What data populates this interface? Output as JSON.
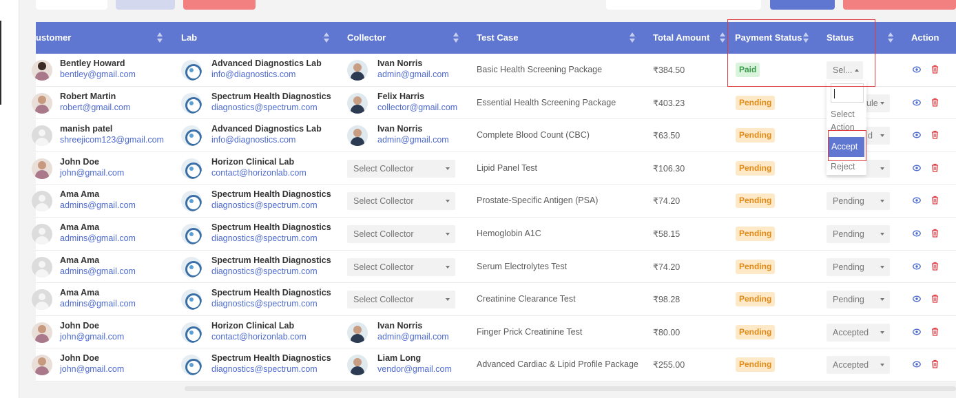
{
  "colors": {
    "header_bg": "#5f77d0",
    "link": "#4e6bd0",
    "paid_bg": "#d9f3dd",
    "paid_fg": "#3a9b49",
    "pending_bg": "#fde9c8",
    "pending_fg": "#e08a17",
    "highlight": "#e0393e"
  },
  "columns": [
    "ustomer",
    "Lab",
    "Collector",
    "Test Case",
    "Total Amount",
    "Payment Status",
    "Status",
    "Action"
  ],
  "rows": [
    {
      "customer": {
        "name": "Bentley Howard",
        "email": "bentley@gmail.com",
        "avatar": "person-photo-icon"
      },
      "lab": {
        "name": "Advanced Diagnostics Lab",
        "email": "info@diagnostics.com"
      },
      "collector": {
        "name": "Ivan Norris",
        "email": "admin@gmail.com"
      },
      "test_case": "Basic Health Screening Package",
      "amount": "₹384.50",
      "payment_status": "Paid",
      "status": "Sel..."
    },
    {
      "customer": {
        "name": "Robert Martin",
        "email": "robert@gmail.com",
        "avatar": "person-photo-icon"
      },
      "lab": {
        "name": "Spectrum Health Diagnostics",
        "email": "diagnostics@spectrum.com"
      },
      "collector": {
        "name": "Felix Harris",
        "email": "collector@gmail.com"
      },
      "test_case": "Essential Health Screening Package",
      "amount": "₹403.23",
      "payment_status": "Pending",
      "status": "ule"
    },
    {
      "customer": {
        "name": "manish patel",
        "email": "shreejicom123@gmail.com",
        "avatar": "default-avatar-icon"
      },
      "lab": {
        "name": "Advanced Diagnostics Lab",
        "email": "info@diagnostics.com"
      },
      "collector": {
        "name": "Ivan Norris",
        "email": "admin@gmail.com"
      },
      "test_case": "Complete Blood Count (CBC)",
      "amount": "₹63.50",
      "payment_status": "Pending",
      "status": "d"
    },
    {
      "customer": {
        "name": "John Doe",
        "email": "john@gmail.com",
        "avatar": "person-photo-icon"
      },
      "lab": {
        "name": "Horizon Clinical Lab",
        "email": "contact@horizonlab.com"
      },
      "collector": {
        "placeholder": "Select Collector"
      },
      "test_case": "Lipid Panel Test",
      "amount": "₹106.30",
      "payment_status": "Pending",
      "status": ""
    },
    {
      "customer": {
        "name": "Ama Ama",
        "email": "admins@gmail.com",
        "avatar": "default-avatar-icon"
      },
      "lab": {
        "name": "Spectrum Health Diagnostics",
        "email": "diagnostics@spectrum.com"
      },
      "collector": {
        "placeholder": "Select Collector"
      },
      "test_case": "Prostate-Specific Antigen (PSA)",
      "amount": "₹74.20",
      "payment_status": "Pending",
      "status": "Pending"
    },
    {
      "customer": {
        "name": "Ama Ama",
        "email": "admins@gmail.com",
        "avatar": "default-avatar-icon"
      },
      "lab": {
        "name": "Spectrum Health Diagnostics",
        "email": "diagnostics@spectrum.com"
      },
      "collector": {
        "placeholder": "Select Collector"
      },
      "test_case": "Hemoglobin A1C",
      "amount": "₹58.15",
      "payment_status": "Pending",
      "status": "Pending"
    },
    {
      "customer": {
        "name": "Ama Ama",
        "email": "admins@gmail.com",
        "avatar": "default-avatar-icon"
      },
      "lab": {
        "name": "Spectrum Health Diagnostics",
        "email": "diagnostics@spectrum.com"
      },
      "collector": {
        "placeholder": "Select Collector"
      },
      "test_case": "Serum Electrolytes Test",
      "amount": "₹74.20",
      "payment_status": "Pending",
      "status": "Pending"
    },
    {
      "customer": {
        "name": "Ama Ama",
        "email": "admins@gmail.com",
        "avatar": "default-avatar-icon"
      },
      "lab": {
        "name": "Spectrum Health Diagnostics",
        "email": "diagnostics@spectrum.com"
      },
      "collector": {
        "placeholder": "Select Collector"
      },
      "test_case": "Creatinine Clearance Test",
      "amount": "₹98.28",
      "payment_status": "Pending",
      "status": "Pending"
    },
    {
      "customer": {
        "name": "John Doe",
        "email": "john@gmail.com",
        "avatar": "person-photo-icon"
      },
      "lab": {
        "name": "Horizon Clinical Lab",
        "email": "contact@horizonlab.com"
      },
      "collector": {
        "name": "Ivan Norris",
        "email": "admin@gmail.com"
      },
      "test_case": "Finger Prick Creatinine Test",
      "amount": "₹80.00",
      "payment_status": "Pending",
      "status": "Accepted"
    },
    {
      "customer": {
        "name": "John Doe",
        "email": "john@gmail.com",
        "avatar": "person-photo-icon"
      },
      "lab": {
        "name": "Spectrum Health Diagnostics",
        "email": "diagnostics@spectrum.com"
      },
      "collector": {
        "name": "Liam Long",
        "email": "vendor@gmail.com"
      },
      "test_case": "Advanced Cardiac & Lipid Profile Package",
      "amount": "₹255.00",
      "payment_status": "Pending",
      "status": "Accepted"
    }
  ],
  "status_dropdown": {
    "options": [
      "Select Action",
      "Accept",
      "Reject"
    ],
    "highlighted": "Accept",
    "search_value": ""
  },
  "icons": {
    "view": "eye-icon",
    "delete": "trash-icon",
    "sort": "sort-icon"
  }
}
